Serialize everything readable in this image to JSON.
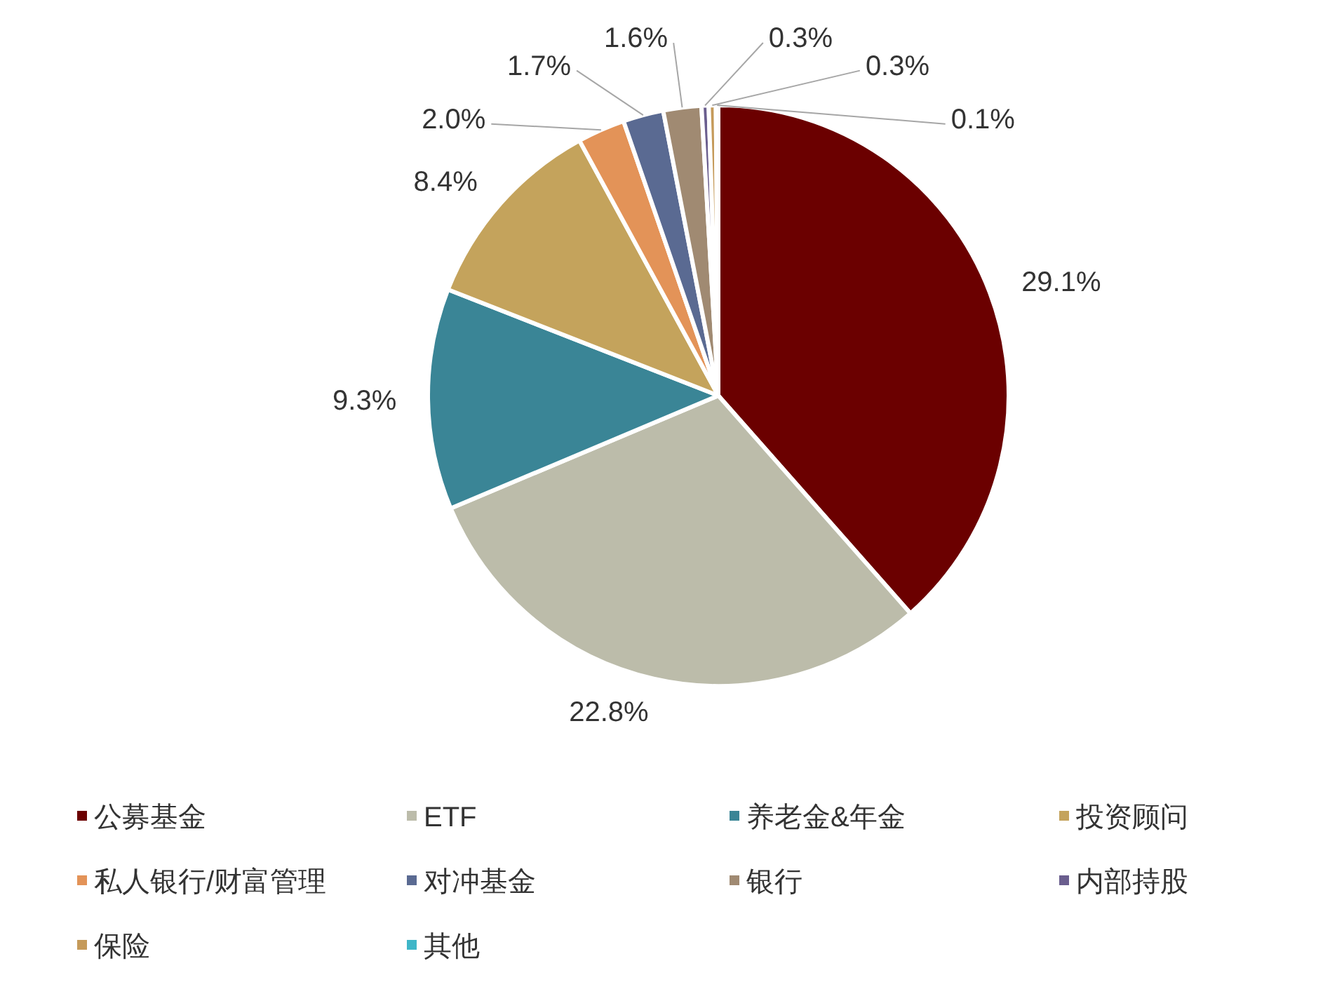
{
  "chart_data": {
    "type": "pie",
    "categories": [
      "公募基金",
      "ETF",
      "养老金&年金",
      "投资顾问",
      "私人银行/财富管理",
      "对冲基金",
      "银行",
      "内部持股",
      "保险",
      "其他"
    ],
    "values": [
      29.1,
      22.8,
      9.3,
      8.4,
      2.0,
      1.7,
      1.6,
      0.3,
      0.3,
      0.1
    ],
    "colors": [
      "#6b0000",
      "#bcbcaa",
      "#3a8596",
      "#c4a35c",
      "#e39358",
      "#5a6a92",
      "#a08a72",
      "#6a5e8e",
      "#c59a5a",
      "#3fb6c8"
    ],
    "value_labels": [
      "29.1%",
      "22.8%",
      "9.3%",
      "8.4%",
      "2.0%",
      "1.7%",
      "1.6%",
      "0.3%",
      "0.3%",
      "0.1%"
    ],
    "legend": "bottom"
  }
}
